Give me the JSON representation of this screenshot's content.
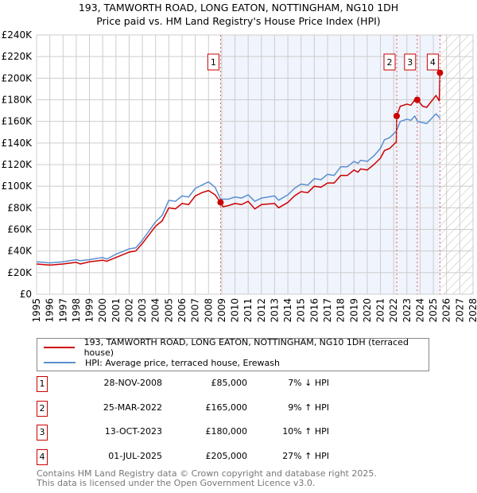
{
  "title_line1": "193, TAMWORTH ROAD, LONG EATON, NOTTINGHAM, NG10 1DH",
  "title_line2": "Price paid vs. HM Land Registry's House Price Index (HPI)",
  "chart_data": {
    "type": "line",
    "xlim": [
      1995,
      2028
    ],
    "ylim": [
      0,
      240000
    ],
    "x_ticks": [
      "1995",
      "1996",
      "1997",
      "1998",
      "1999",
      "2000",
      "2001",
      "2002",
      "2003",
      "2004",
      "2005",
      "2006",
      "2007",
      "2008",
      "2009",
      "2010",
      "2011",
      "2012",
      "2013",
      "2014",
      "2015",
      "2016",
      "2017",
      "2018",
      "2019",
      "2020",
      "2021",
      "2022",
      "2023",
      "2024",
      "2025",
      "2026",
      "2027",
      "2028"
    ],
    "y_ticks": [
      {
        "v": 0,
        "label": "£0"
      },
      {
        "v": 20000,
        "label": "£20K"
      },
      {
        "v": 40000,
        "label": "£40K"
      },
      {
        "v": 60000,
        "label": "£60K"
      },
      {
        "v": 80000,
        "label": "£80K"
      },
      {
        "v": 100000,
        "label": "£100K"
      },
      {
        "v": 120000,
        "label": "£120K"
      },
      {
        "v": 140000,
        "label": "£140K"
      },
      {
        "v": 160000,
        "label": "£160K"
      },
      {
        "v": 180000,
        "label": "£180K"
      },
      {
        "v": 200000,
        "label": "£200K"
      },
      {
        "v": 220000,
        "label": "£220K"
      },
      {
        "v": 240000,
        "label": "£240K"
      }
    ],
    "grid": true,
    "shaded_range": [
      2008.91,
      2025.5
    ],
    "forecast_hatch_from": 2025.5,
    "series": [
      {
        "name": "193, TAMWORTH ROAD, LONG EATON, NOTTINGHAM, NG10 1DH (terraced house)",
        "color": "#cc0000",
        "points": [
          [
            1995,
            28000
          ],
          [
            1996,
            27000
          ],
          [
            1997,
            28000
          ],
          [
            1998,
            29500
          ],
          [
            1998.3,
            28000
          ],
          [
            1999,
            30000
          ],
          [
            2000,
            31500
          ],
          [
            2000.3,
            30500
          ],
          [
            2001,
            34000
          ],
          [
            2002,
            39000
          ],
          [
            2002.5,
            40000
          ],
          [
            2003,
            47000
          ],
          [
            2004,
            63000
          ],
          [
            2004.5,
            68000
          ],
          [
            2005,
            80000
          ],
          [
            2005.5,
            79000
          ],
          [
            2006,
            84000
          ],
          [
            2006.5,
            83000
          ],
          [
            2007,
            91000
          ],
          [
            2007.5,
            94000
          ],
          [
            2008,
            96000
          ],
          [
            2008.5,
            92000
          ],
          [
            2008.91,
            85000
          ],
          [
            2009.1,
            81000
          ],
          [
            2009.5,
            82000
          ],
          [
            2010,
            84000
          ],
          [
            2010.5,
            83000
          ],
          [
            2011,
            86000
          ],
          [
            2011.5,
            79000
          ],
          [
            2012,
            83000
          ],
          [
            2013,
            84000
          ],
          [
            2013.3,
            80000
          ],
          [
            2014,
            85000
          ],
          [
            2014.5,
            91000
          ],
          [
            2015,
            95000
          ],
          [
            2015.5,
            94000
          ],
          [
            2016,
            100000
          ],
          [
            2016.5,
            99000
          ],
          [
            2017,
            103000
          ],
          [
            2017.5,
            103000
          ],
          [
            2018,
            110000
          ],
          [
            2018.5,
            110000
          ],
          [
            2019,
            115000
          ],
          [
            2019.3,
            113000
          ],
          [
            2019.5,
            116000
          ],
          [
            2020,
            115000
          ],
          [
            2020.5,
            120000
          ],
          [
            2021,
            126000
          ],
          [
            2021.3,
            133000
          ],
          [
            2021.7,
            135000
          ],
          [
            2022.2,
            141000
          ],
          [
            2022.23,
            165000
          ],
          [
            2022.5,
            174000
          ],
          [
            2023,
            176000
          ],
          [
            2023.3,
            175000
          ],
          [
            2023.6,
            180000
          ],
          [
            2023.78,
            180000
          ],
          [
            2024.2,
            174000
          ],
          [
            2024.5,
            173000
          ],
          [
            2025.2,
            184000
          ],
          [
            2025.45,
            179000
          ],
          [
            2025.5,
            205000
          ]
        ]
      },
      {
        "name": "HPI: Average price, terraced house, Erewash",
        "color": "#5b8fd0",
        "points": [
          [
            1995,
            30000
          ],
          [
            1996,
            29000
          ],
          [
            1997,
            30000
          ],
          [
            1998,
            32000
          ],
          [
            1998.3,
            31000
          ],
          [
            1999,
            32000
          ],
          [
            2000,
            34000
          ],
          [
            2000.3,
            32500
          ],
          [
            2001,
            37000
          ],
          [
            2002,
            42000
          ],
          [
            2002.5,
            43000
          ],
          [
            2003,
            50000
          ],
          [
            2004,
            67000
          ],
          [
            2004.5,
            73000
          ],
          [
            2005,
            87000
          ],
          [
            2005.5,
            86000
          ],
          [
            2006,
            91000
          ],
          [
            2006.5,
            90000
          ],
          [
            2007,
            98000
          ],
          [
            2007.5,
            101000
          ],
          [
            2008,
            104000
          ],
          [
            2008.5,
            99000
          ],
          [
            2008.91,
            88000
          ],
          [
            2009.5,
            88000
          ],
          [
            2010,
            90000
          ],
          [
            2010.5,
            89000
          ],
          [
            2011,
            92000
          ],
          [
            2011.5,
            86000
          ],
          [
            2012,
            89000
          ],
          [
            2013,
            91000
          ],
          [
            2013.3,
            87000
          ],
          [
            2014,
            92000
          ],
          [
            2014.5,
            98000
          ],
          [
            2015,
            102000
          ],
          [
            2015.5,
            101000
          ],
          [
            2016,
            107000
          ],
          [
            2016.5,
            106000
          ],
          [
            2017,
            111000
          ],
          [
            2017.5,
            110000
          ],
          [
            2018,
            118000
          ],
          [
            2018.5,
            118000
          ],
          [
            2019,
            123000
          ],
          [
            2019.3,
            121000
          ],
          [
            2019.5,
            124000
          ],
          [
            2020,
            123000
          ],
          [
            2020.5,
            128000
          ],
          [
            2021,
            135000
          ],
          [
            2021.3,
            143000
          ],
          [
            2021.7,
            145000
          ],
          [
            2022.2,
            151000
          ],
          [
            2022.5,
            160000
          ],
          [
            2023,
            162000
          ],
          [
            2023.3,
            161000
          ],
          [
            2023.6,
            165000
          ],
          [
            2023.8,
            160000
          ],
          [
            2024.5,
            158000
          ],
          [
            2025.2,
            167000
          ],
          [
            2025.5,
            163000
          ]
        ]
      }
    ],
    "sales": [
      {
        "n": "1",
        "x": 2008.91,
        "y": 85000
      },
      {
        "n": "2",
        "x": 2022.23,
        "y": 165000
      },
      {
        "n": "3",
        "x": 2023.78,
        "y": 180000
      },
      {
        "n": "4",
        "x": 2025.5,
        "y": 205000
      }
    ]
  },
  "legend": {
    "property": "193, TAMWORTH ROAD, LONG EATON, NOTTINGHAM, NG10 1DH (terraced house)",
    "hpi": "HPI: Average price, terraced house, Erewash"
  },
  "transactions": [
    {
      "n": "1",
      "date": "28-NOV-2008",
      "price": "£85,000",
      "hpi": "7% ↓ HPI"
    },
    {
      "n": "2",
      "date": "25-MAR-2022",
      "price": "£165,000",
      "hpi": "9% ↑ HPI"
    },
    {
      "n": "3",
      "date": "13-OCT-2023",
      "price": "£180,000",
      "hpi": "10% ↑ HPI"
    },
    {
      "n": "4",
      "date": "01-JUL-2025",
      "price": "£205,000",
      "hpi": "27% ↑ HPI"
    }
  ],
  "footer_line1": "Contains HM Land Registry data © Crown copyright and database right 2025.",
  "footer_line2": "This data is licensed under the Open Government Licence v3.0."
}
